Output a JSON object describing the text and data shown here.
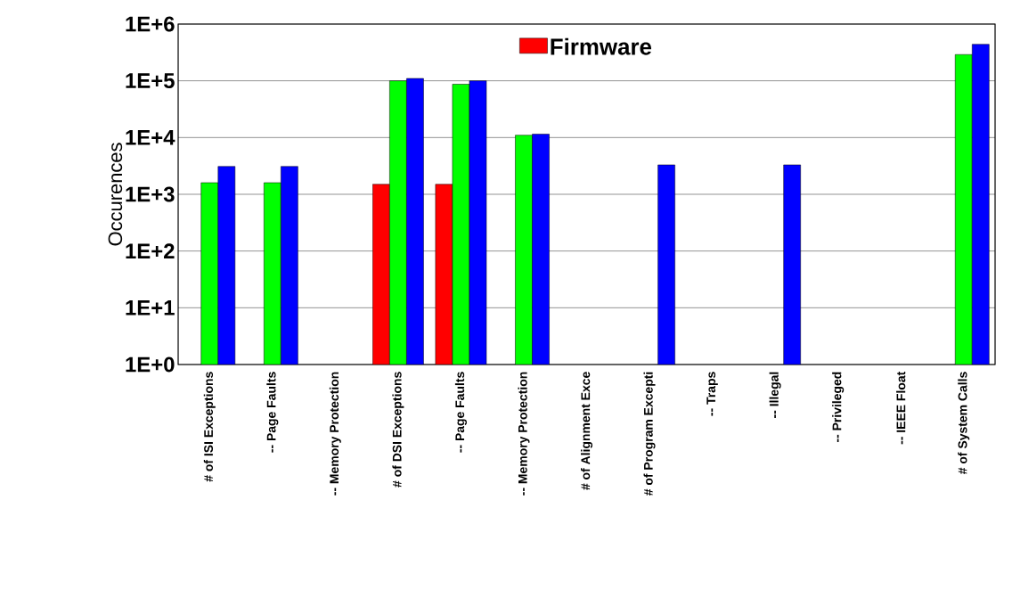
{
  "chart_data": {
    "type": "bar",
    "ylabel": "Occurences",
    "categories": [
      "# of ISI Exceptions",
      "-- Page Faults",
      "-- Memory Protection",
      "# of DSI Exceptions",
      "-- Page Faults",
      "-- Memory Protection",
      "# of Alignment Exce",
      "# of Program Excepti",
      "-- Traps",
      "-- Illegal",
      "-- Privileged",
      "-- IEEE Float",
      "# of System Calls"
    ],
    "series": [
      {
        "name": "Firmware",
        "color": "#ff0000",
        "values": [
          null,
          null,
          null,
          1500,
          1500,
          null,
          null,
          null,
          null,
          null,
          null,
          null,
          null
        ]
      },
      {
        "color": "#00ff00",
        "values": [
          1600,
          1600,
          null,
          100000,
          87000,
          11000,
          null,
          null,
          null,
          null,
          null,
          null,
          290000
        ]
      },
      {
        "color": "#0000ff",
        "values": [
          3100,
          3100,
          null,
          110000,
          100000,
          11500,
          null,
          3300,
          null,
          3300,
          null,
          null,
          440000
        ]
      }
    ],
    "log": true,
    "ylim": [
      1,
      1000000
    ],
    "yticks": [
      {
        "value": 1,
        "label": "1E+0"
      },
      {
        "value": 10,
        "label": "1E+1"
      },
      {
        "value": 100,
        "label": "1E+2"
      },
      {
        "value": 1000,
        "label": "1E+3"
      },
      {
        "value": 10000,
        "label": "1E+4"
      },
      {
        "value": 100000,
        "label": "1E+5"
      },
      {
        "value": 1000000,
        "label": "1E+6"
      }
    ],
    "grid": "y",
    "legend": "top"
  }
}
